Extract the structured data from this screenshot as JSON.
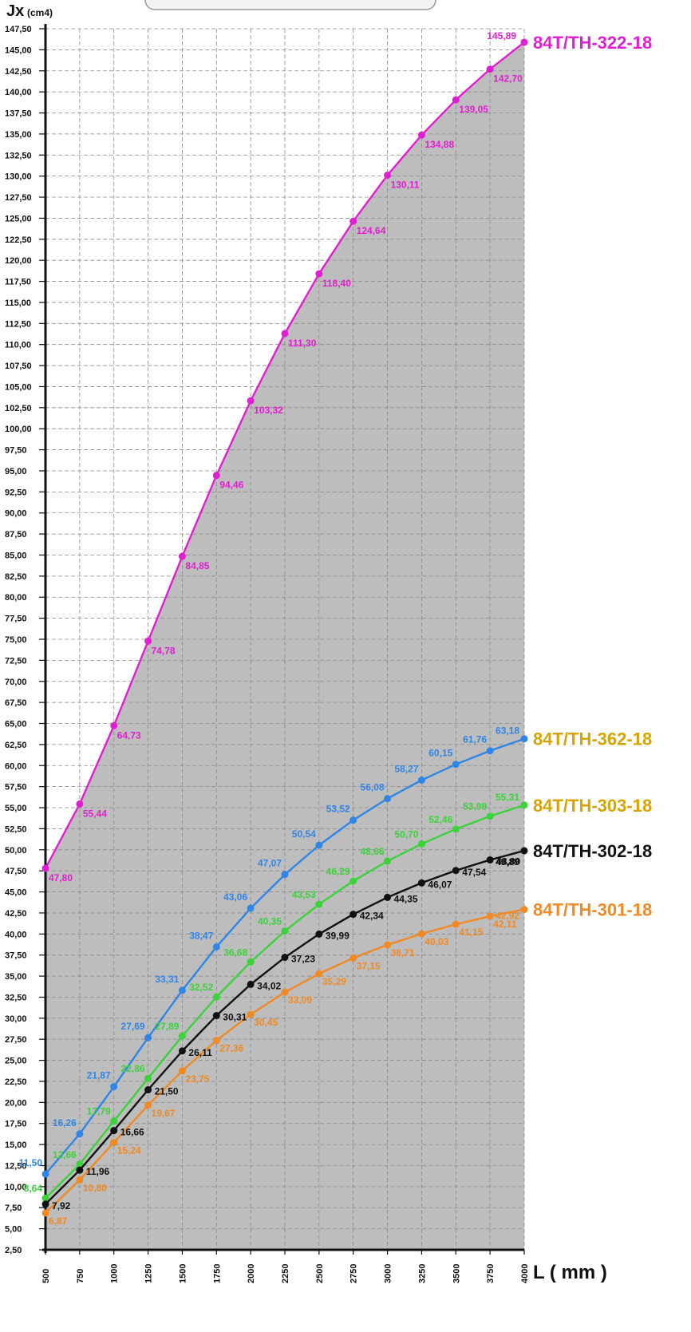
{
  "header": {
    "label_text": ""
  },
  "chart_data": {
    "type": "line",
    "y_axis_title": "Jx",
    "y_axis_unit": "(cm4)",
    "x_axis_title": "L ( mm )",
    "x": [
      500,
      750,
      1000,
      1250,
      1500,
      1750,
      2000,
      2250,
      2500,
      2750,
      3000,
      3250,
      3500,
      3750,
      4000
    ],
    "ylim": [
      2.5,
      147.5
    ],
    "y_tick_step": 2.5,
    "grid": true,
    "background": "#bdbdbd",
    "series": [
      {
        "name": "84T/TH-322-18",
        "color": "#e020d0",
        "values": [
          47.8,
          55.44,
          64.73,
          74.78,
          84.85,
          94.46,
          103.32,
          111.3,
          118.4,
          124.64,
          130.11,
          134.88,
          139.05,
          142.7,
          145.89
        ],
        "labels": [
          "47,80",
          "55,44",
          "64,73",
          "74,78",
          "84,85",
          "94,46",
          "103,32",
          "111,30",
          "118,40",
          "124,64",
          "130,11",
          "134,88",
          "139,05",
          "142,70",
          "145,89"
        ]
      },
      {
        "name": "84T/TH-362-18",
        "color": "#2f86e6",
        "values": [
          11.5,
          16.26,
          21.87,
          27.69,
          33.31,
          38.47,
          43.06,
          47.07,
          50.54,
          53.52,
          56.08,
          58.27,
          60.15,
          61.76,
          63.18
        ],
        "labels": [
          "11,50",
          "16,26",
          "21,87",
          "27,69",
          "33,31",
          "38,47",
          "43,06",
          "47,07",
          "50,54",
          "53,52",
          "56,08",
          "58,27",
          "60,15",
          "61,76",
          "63,18"
        ]
      },
      {
        "name": "84T/TH-303-18",
        "color": "#3bd23b",
        "values": [
          8.64,
          12.66,
          17.79,
          22.86,
          27.89,
          32.52,
          36.68,
          40.35,
          43.53,
          46.29,
          48.66,
          50.7,
          52.46,
          53.99,
          55.31
        ],
        "labels": [
          "8,64",
          "12,66",
          "17,79",
          "22,86",
          "27,89",
          "32,52",
          "36,68",
          "40,35",
          "43,53",
          "46,29",
          "48,66",
          "50,70",
          "52,46",
          "53,99",
          "55,31"
        ]
      },
      {
        "name": "84T/TH-302-18",
        "color": "#111111",
        "values": [
          7.92,
          11.96,
          16.66,
          21.5,
          26.11,
          30.31,
          34.02,
          37.23,
          39.99,
          42.34,
          44.35,
          46.07,
          47.54,
          48.8,
          49.89
        ],
        "labels": [
          "7,92",
          "11,96",
          "16,66",
          "21,50",
          "26,11",
          "30,31",
          "34,02",
          "37,23",
          "39,99",
          "42,34",
          "44,35",
          "46,07",
          "47,54",
          "48,80",
          "49,89"
        ]
      },
      {
        "name": "84T/TH-301-18",
        "color": "#f08a24",
        "values": [
          6.87,
          10.8,
          15.24,
          19.67,
          23.75,
          27.36,
          30.45,
          33.09,
          35.29,
          37.15,
          38.71,
          40.03,
          41.15,
          42.11,
          42.92
        ],
        "labels": [
          "6,87",
          "10,80",
          "15,24",
          "19,67",
          "23,75",
          "27,36",
          "30,45",
          "33,09",
          "35,29",
          "37,15",
          "38,71",
          "40,03",
          "41,15",
          "42,11",
          "42,92"
        ]
      }
    ],
    "series_label_colors": [
      "#e020d0",
      "#d6a400",
      "#d6a400",
      "#111111",
      "#f08a24"
    ]
  }
}
